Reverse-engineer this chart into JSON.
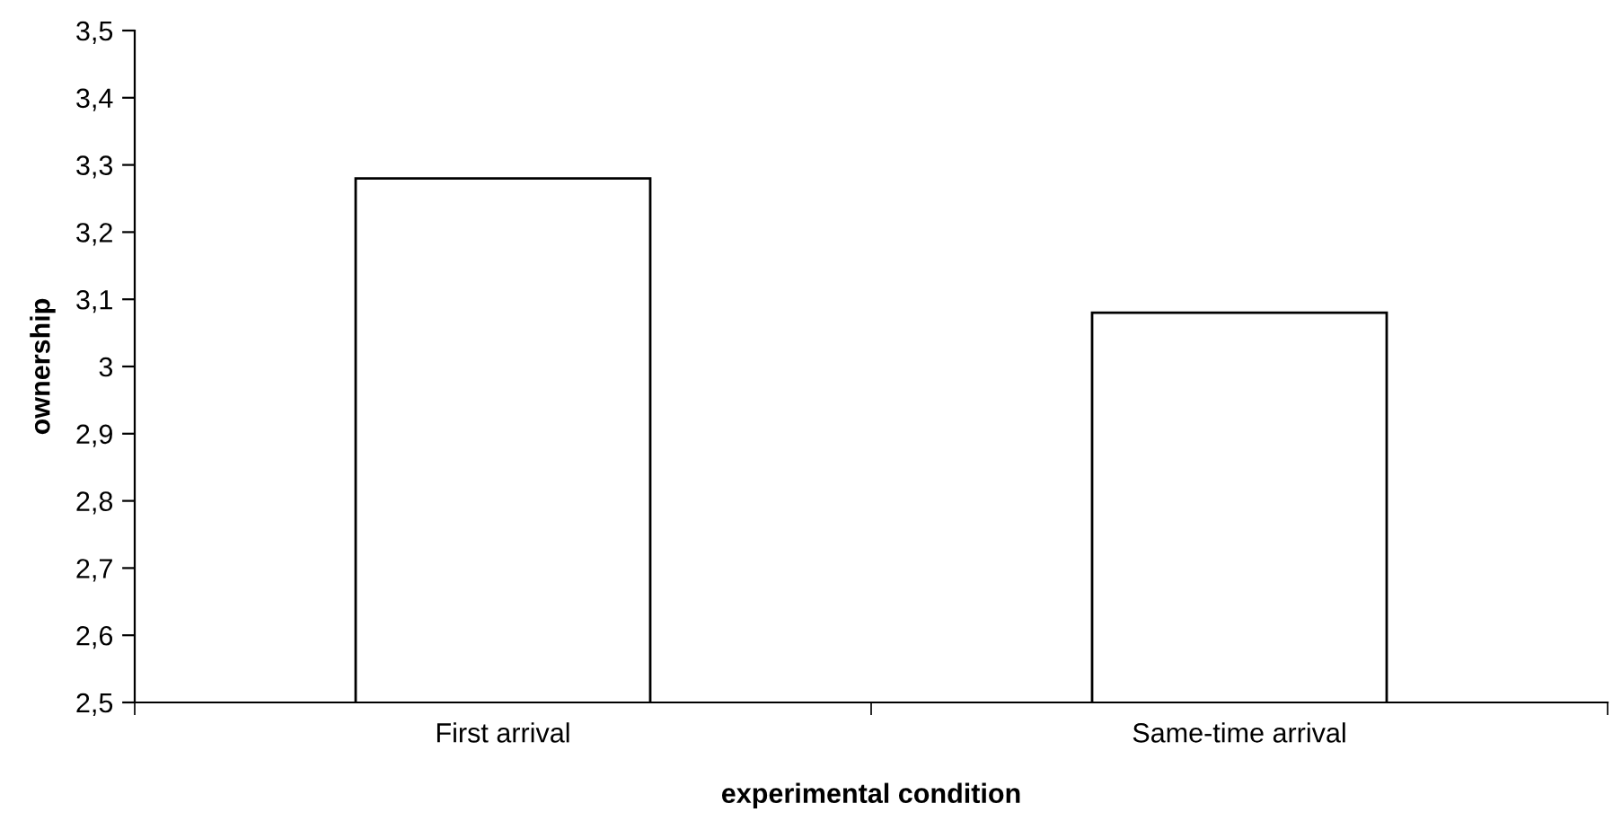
{
  "chart_data": {
    "type": "bar",
    "xlabel": "experimental condition",
    "ylabel": "ownership",
    "categories": [
      "First arrival",
      "Same-time arrival"
    ],
    "values": [
      3.28,
      3.08
    ],
    "color": "#ffffff",
    "ylim": [
      2.5,
      3.5
    ],
    "yticks": [
      {
        "value": 2.5,
        "label": "2,5"
      },
      {
        "value": 2.6,
        "label": "2,6"
      },
      {
        "value": 2.7,
        "label": "2,7"
      },
      {
        "value": 2.8,
        "label": "2,8"
      },
      {
        "value": 2.9,
        "label": "2,9"
      },
      3,
      {
        "value": 3.1,
        "label": "3,1"
      },
      {
        "value": 3.2,
        "label": "3,2"
      },
      {
        "value": 3.3,
        "label": "3,3"
      },
      {
        "value": 3.4,
        "label": "3,4"
      },
      {
        "value": 3.5,
        "label": "3,5"
      }
    ],
    "grid": false,
    "legend": false
  }
}
